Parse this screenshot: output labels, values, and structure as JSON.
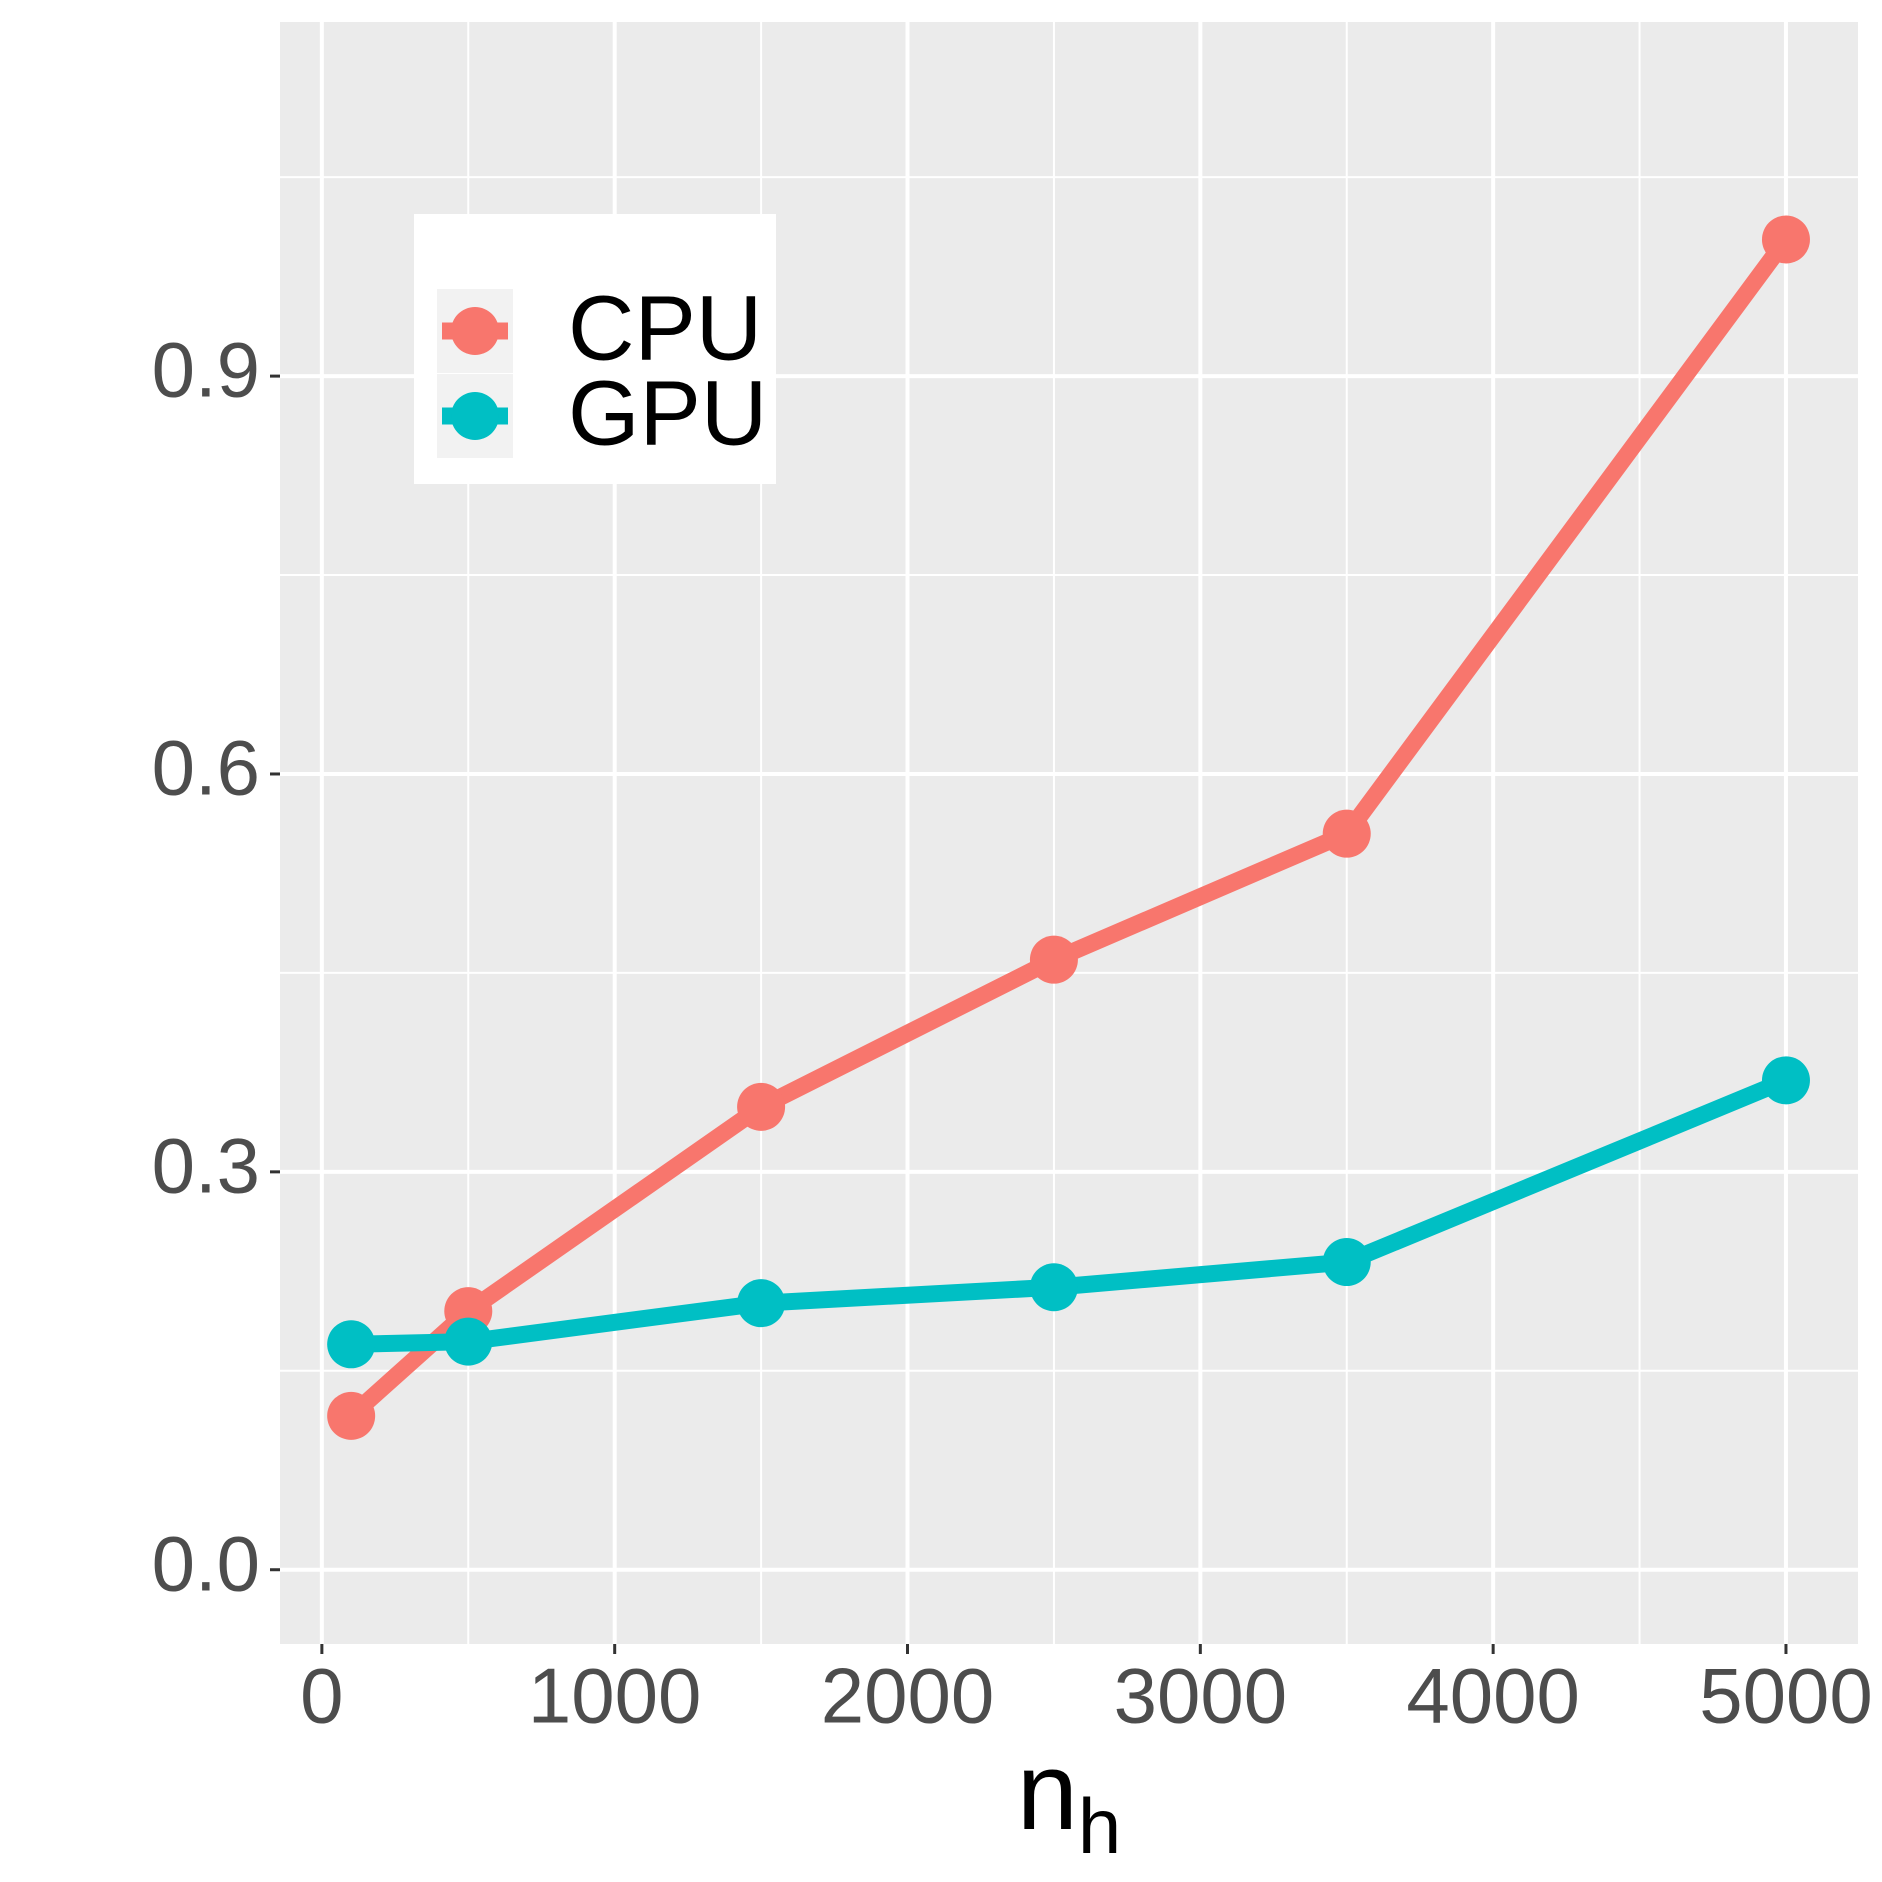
{
  "chart_data": {
    "type": "line",
    "x": [
      100,
      500,
      1500,
      2500,
      3500,
      5000
    ],
    "series": [
      {
        "name": "CPU",
        "color": "#f8766d",
        "values": [
          0.116,
          0.195,
          0.349,
          0.46,
          0.555,
          1.003
        ]
      },
      {
        "name": "GPU",
        "color": "#00bfc4",
        "values": [
          0.17,
          0.172,
          0.201,
          0.213,
          0.232,
          0.369
        ]
      }
    ],
    "xlabel": "n",
    "xlabel_subscript": "h",
    "xlim": [
      -143,
      5246
    ],
    "ylim": [
      -0.056,
      1.167
    ],
    "xticks": [
      0,
      1000,
      2000,
      3000,
      4000,
      5000
    ],
    "yticks": [
      {
        "value": 0,
        "label": "0.0"
      },
      0.3,
      0.6,
      0.9
    ],
    "x_minor_grid": [
      500,
      1500,
      2500,
      3500,
      4500
    ],
    "y_minor_grid": [
      0.15,
      0.45,
      0.75,
      1.05
    ],
    "grid": true,
    "legend_position": "top-left"
  }
}
